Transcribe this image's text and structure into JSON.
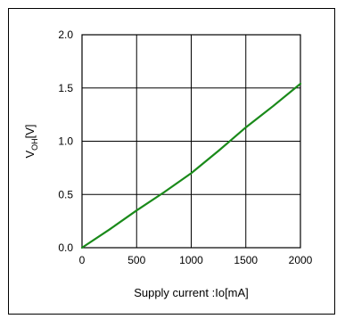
{
  "chart_data": {
    "type": "line",
    "title": "",
    "xlabel": "Supply current :Io[mA]",
    "ylabel_main": "V",
    "ylabel_sub": "OH",
    "ylabel_unit": "[V]",
    "xlim": [
      0,
      2000
    ],
    "ylim": [
      0.0,
      2.0
    ],
    "x_ticks": [
      "0",
      "500",
      "1000",
      "1500",
      "2000"
    ],
    "y_ticks": [
      "0.0",
      "0.5",
      "1.0",
      "1.5",
      "2.0"
    ],
    "grid": true,
    "series_color": "#1a8a1a",
    "series": [
      {
        "x": [
          0,
          250,
          500,
          750,
          1000,
          1250,
          1500,
          1750,
          2000
        ],
        "y": [
          0.0,
          0.17,
          0.35,
          0.52,
          0.7,
          0.91,
          1.13,
          1.33,
          1.54
        ]
      }
    ]
  }
}
